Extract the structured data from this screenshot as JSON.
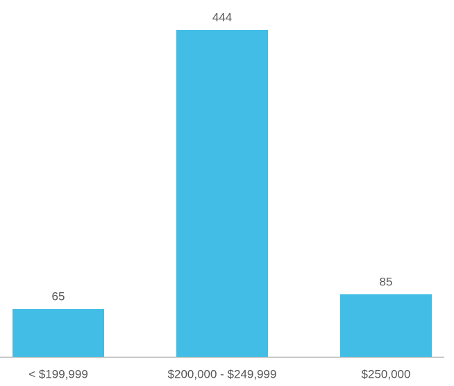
{
  "chart_data": {
    "type": "bar",
    "categories": [
      "< $199,999",
      "$200,000 - $249,999",
      "$250,000"
    ],
    "values": [
      65,
      444,
      85
    ],
    "color": "#41bde6"
  }
}
